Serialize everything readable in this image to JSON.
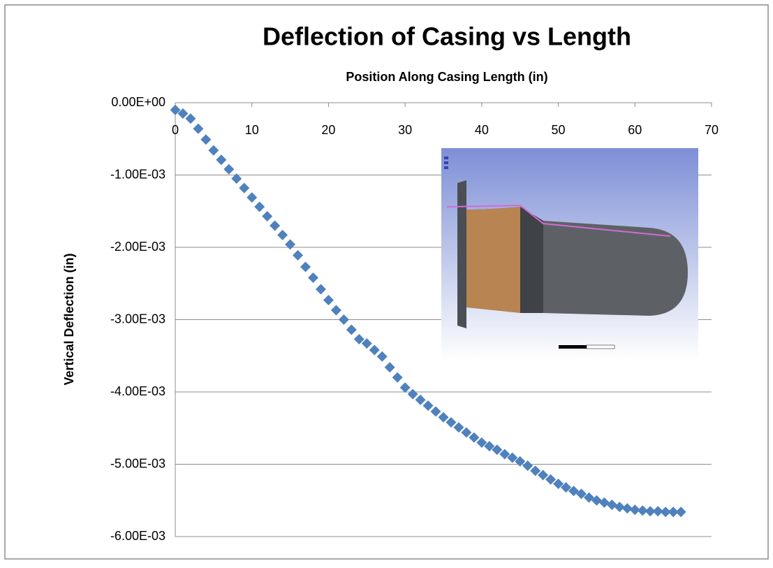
{
  "chart_data": {
    "type": "scatter",
    "title": "Deflection of Casing vs Length",
    "x_label": "Position Along Casing Length (in)",
    "y_label": "Vertical Deflection (in)",
    "color": "#4f81bd",
    "grid": true,
    "xlim": [
      0,
      70
    ],
    "xticks": [
      0,
      10,
      20,
      30,
      40,
      50,
      60,
      70
    ],
    "ylim": [
      -0.006,
      0
    ],
    "yticks": [
      {
        "value": 0,
        "label": "0.00E+00"
      },
      {
        "value": -0.001,
        "label": "-1.00E-03"
      },
      {
        "value": -0.002,
        "label": "-2.00E-03"
      },
      {
        "value": -0.003,
        "label": "-3.00E-03"
      },
      {
        "value": -0.004,
        "label": "-4.00E-03"
      },
      {
        "value": -0.005,
        "label": "-5.00E-03"
      },
      {
        "value": -0.006,
        "label": "-6.00E-03"
      }
    ],
    "x": [
      0,
      1,
      2,
      3,
      4,
      5,
      6,
      7,
      8,
      9,
      10,
      11,
      12,
      13,
      14,
      15,
      16,
      17,
      18,
      19,
      20,
      21,
      22,
      23,
      24,
      25,
      26,
      27,
      28,
      29,
      30,
      31,
      32,
      33,
      34,
      35,
      36,
      37,
      38,
      39,
      40,
      41,
      42,
      43,
      44,
      45,
      46,
      47,
      48,
      49,
      50,
      51,
      52,
      53,
      54,
      55,
      56,
      57,
      58,
      59,
      60,
      61,
      62,
      63,
      64,
      65,
      66
    ],
    "values": [
      -0.0001,
      -0.00015,
      -0.00022,
      -0.00036,
      -0.00051,
      -0.00066,
      -0.00079,
      -0.00092,
      -0.00105,
      -0.00118,
      -0.00131,
      -0.00144,
      -0.00157,
      -0.0017,
      -0.00183,
      -0.00196,
      -0.00211,
      -0.00227,
      -0.00242,
      -0.00258,
      -0.00273,
      -0.00287,
      -0.003,
      -0.00314,
      -0.00327,
      -0.00333,
      -0.00342,
      -0.00351,
      -0.00366,
      -0.0038,
      -0.00394,
      -0.00403,
      -0.00411,
      -0.00419,
      -0.00427,
      -0.00435,
      -0.00442,
      -0.00449,
      -0.00456,
      -0.00463,
      -0.0047,
      -0.00475,
      -0.0048,
      -0.00486,
      -0.00491,
      -0.00496,
      -0.00502,
      -0.00509,
      -0.00515,
      -0.00521,
      -0.00527,
      -0.00532,
      -0.00537,
      -0.00541,
      -0.00546,
      -0.0055,
      -0.00553,
      -0.00556,
      -0.00559,
      -0.00561,
      -0.00563,
      -0.00564,
      -0.00565,
      -0.00565,
      -0.00566,
      -0.00566,
      -0.00566
    ]
  }
}
